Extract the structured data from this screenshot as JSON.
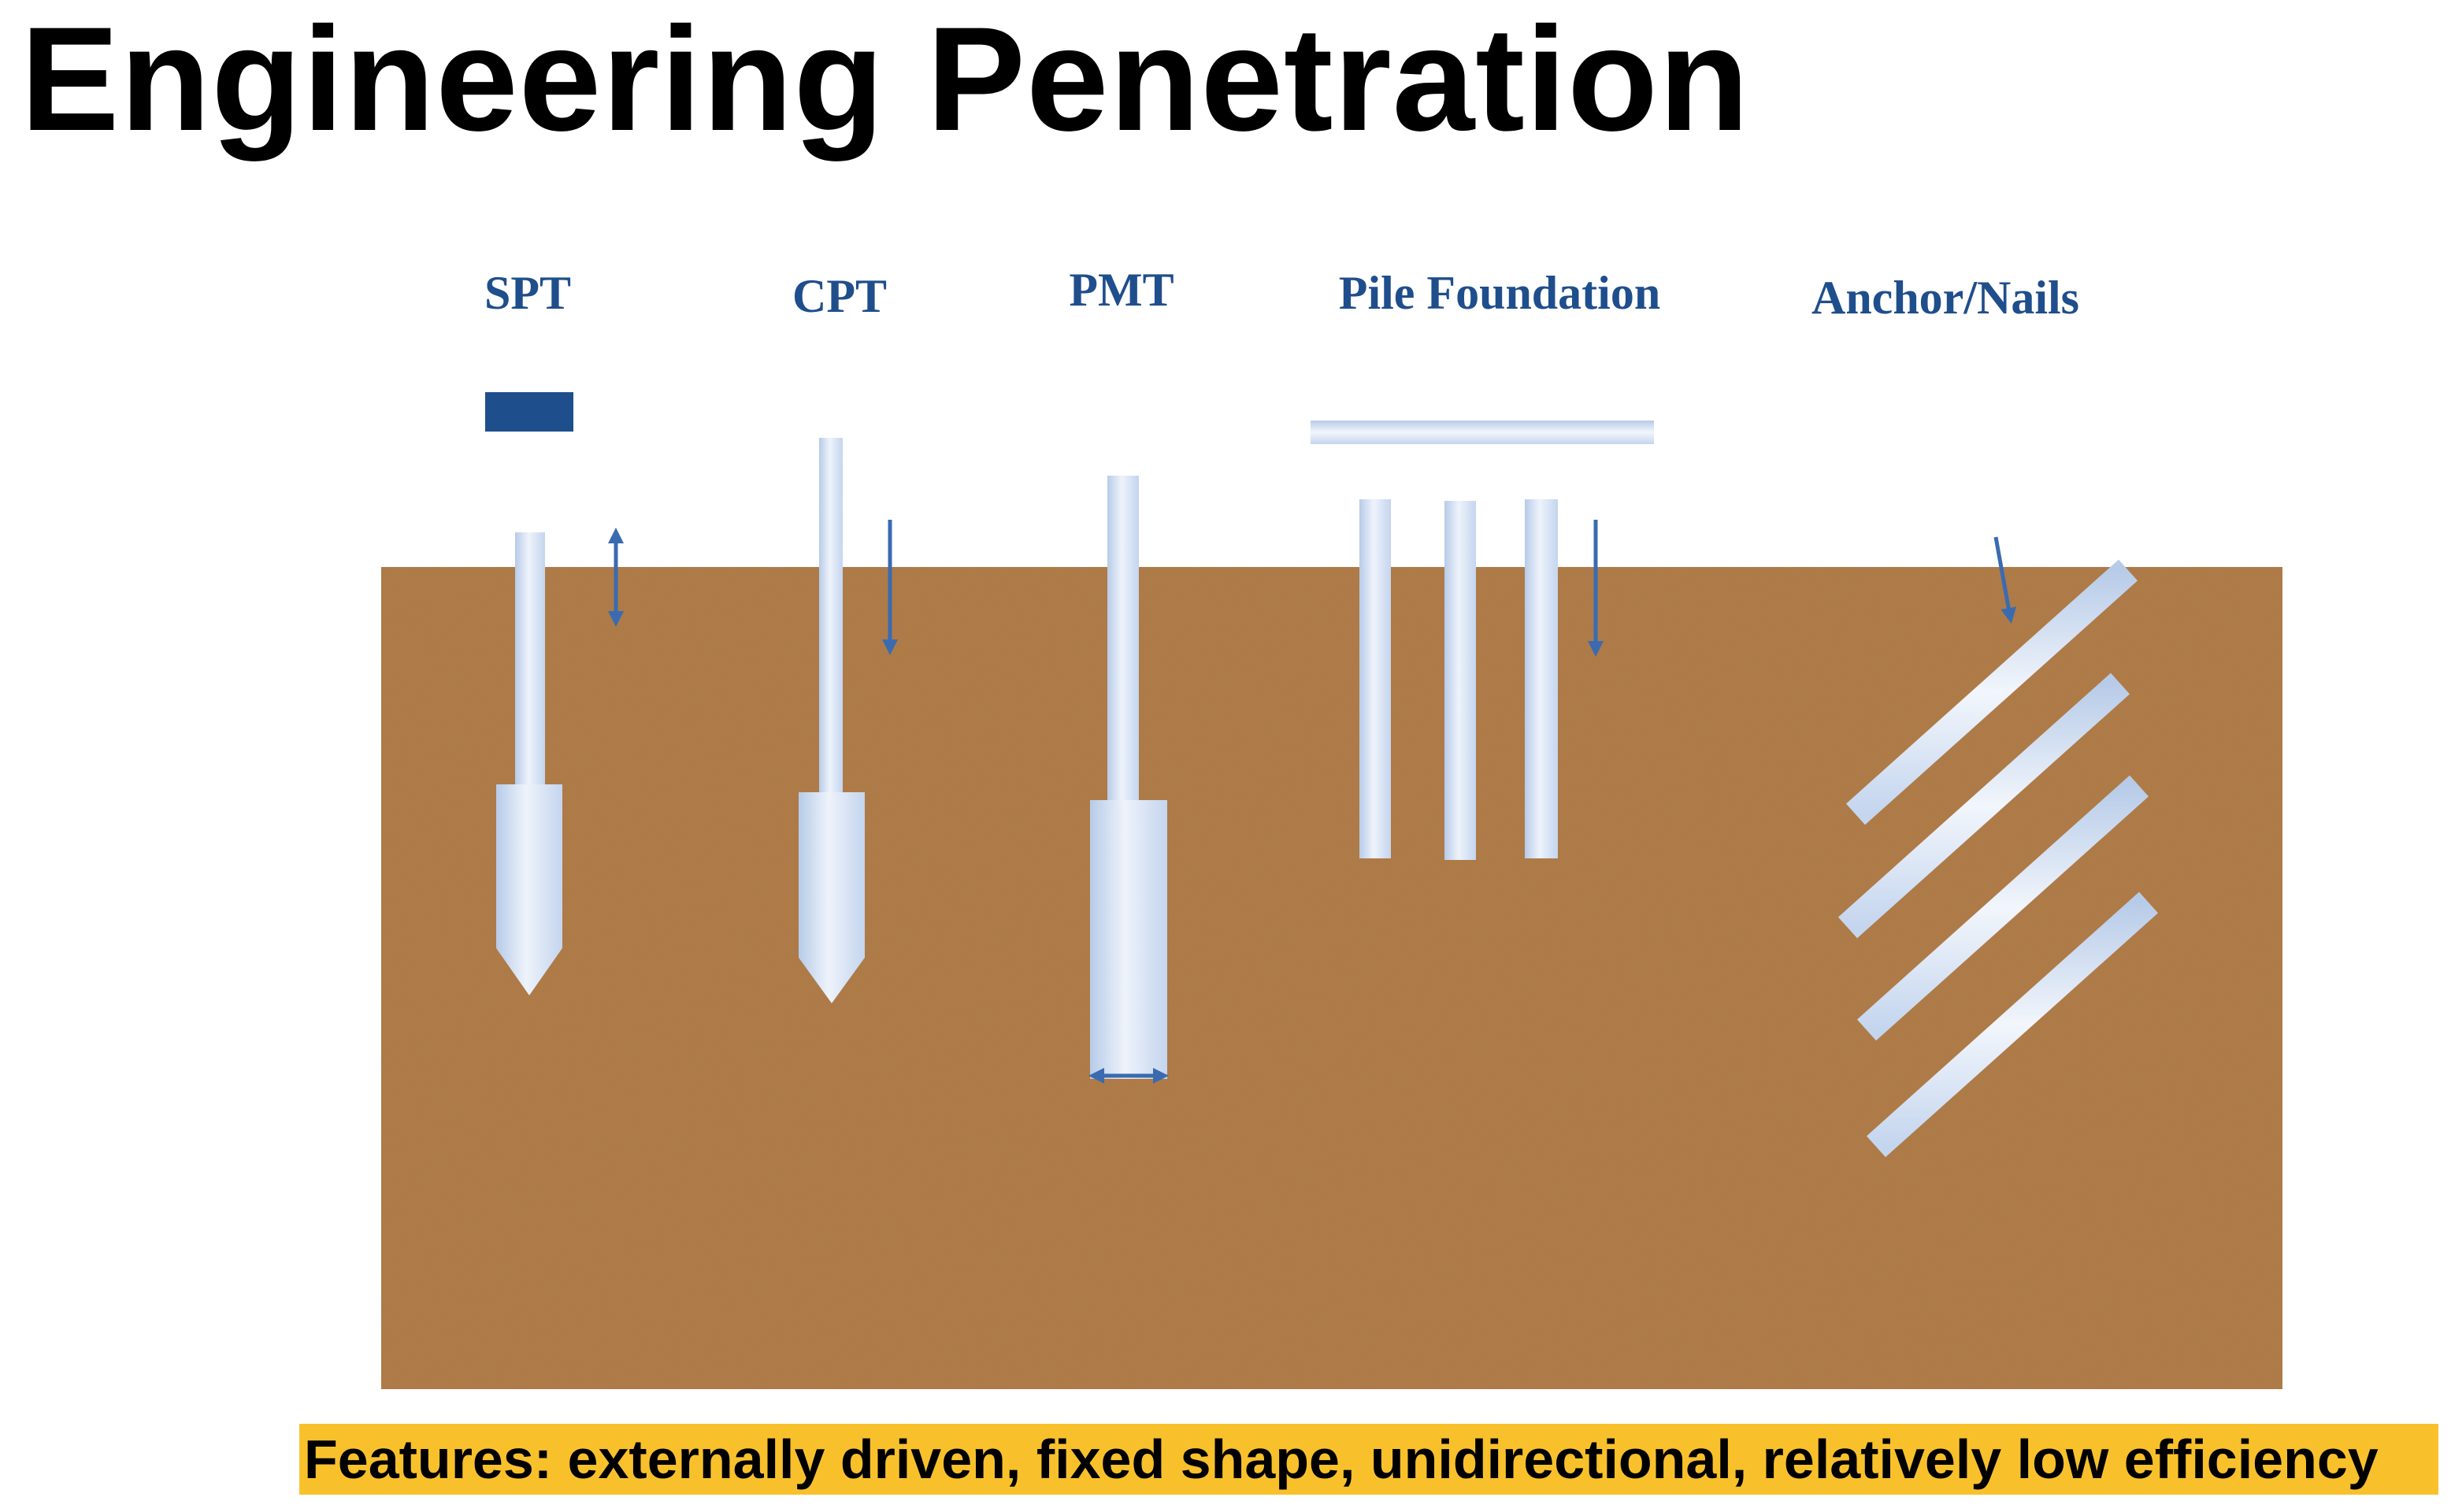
{
  "slide": {
    "title": "Engineering Penetration",
    "footer_note": "Features: externally driven, fixed shape, unidirectional, relatively low efficiency"
  },
  "methods": [
    {
      "key": "spt",
      "label": "SPT"
    },
    {
      "key": "cpt",
      "label": "CPT"
    },
    {
      "key": "pmt",
      "label": "PMT"
    },
    {
      "key": "pile",
      "label": "Pile Foundation"
    },
    {
      "key": "anchor",
      "label": "Anchor/Nails"
    }
  ],
  "colors": {
    "label_text": "#1f4e8c",
    "soil": "#b07a45",
    "probe_dark": "#b7cbe8",
    "probe_light": "#f2f6fc",
    "arrow": "#3a6bb0",
    "spt_hammer": "#1f4e8c",
    "highlight": "#f8c12c"
  },
  "icons": {
    "motion_arrow": "arrow-icon",
    "hammer": "hammer-block-icon"
  }
}
